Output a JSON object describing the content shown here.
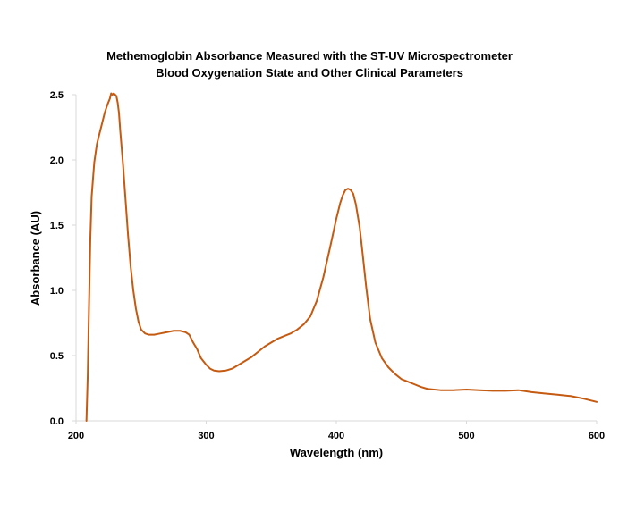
{
  "chart_data": {
    "type": "line",
    "title": "Methemoglobin Absorbance Measured with the ST-UV Microspectrometer",
    "subtitle": "Blood Oxygenation State and Other Clinical Parameters",
    "xlabel": "Wavelength (nm)",
    "ylabel": "Absorbance (AU)",
    "xlim": [
      200,
      600
    ],
    "ylim": [
      0,
      2.5
    ],
    "x_ticks": [
      "200",
      "300",
      "400",
      "500",
      "600"
    ],
    "y_ticks": [
      "0.0",
      "0.5",
      "1.0",
      "1.5",
      "2.0",
      "2.5"
    ],
    "grid": false,
    "legend": "none",
    "series": [
      {
        "color": "#C55A11",
        "x": [
          208,
          209,
          210,
          211,
          212,
          214,
          216,
          218,
          220,
          222,
          224,
          226,
          227,
          228,
          229,
          230,
          231,
          232,
          233,
          234,
          236,
          238,
          240,
          242,
          244,
          246,
          248,
          250,
          253,
          256,
          260,
          265,
          270,
          275,
          280,
          284,
          287,
          290,
          293,
          296,
          300,
          303,
          306,
          310,
          315,
          320,
          325,
          330,
          335,
          340,
          345,
          350,
          355,
          360,
          365,
          370,
          375,
          380,
          385,
          390,
          395,
          400,
          403,
          405,
          407,
          409,
          411,
          413,
          415,
          418,
          420,
          423,
          426,
          430,
          435,
          440,
          445,
          450,
          455,
          460,
          465,
          470,
          480,
          490,
          500,
          510,
          520,
          530,
          540,
          550,
          560,
          570,
          580,
          590,
          600
        ],
        "y": [
          0.0,
          0.35,
          0.9,
          1.4,
          1.72,
          1.98,
          2.12,
          2.2,
          2.28,
          2.36,
          2.42,
          2.47,
          2.51,
          2.5,
          2.51,
          2.5,
          2.49,
          2.44,
          2.36,
          2.22,
          1.98,
          1.7,
          1.42,
          1.18,
          1.0,
          0.86,
          0.76,
          0.7,
          0.67,
          0.66,
          0.66,
          0.67,
          0.68,
          0.69,
          0.69,
          0.68,
          0.66,
          0.6,
          0.55,
          0.48,
          0.43,
          0.4,
          0.385,
          0.38,
          0.385,
          0.4,
          0.43,
          0.46,
          0.49,
          0.53,
          0.57,
          0.6,
          0.63,
          0.65,
          0.67,
          0.7,
          0.74,
          0.8,
          0.92,
          1.1,
          1.32,
          1.55,
          1.67,
          1.73,
          1.77,
          1.78,
          1.77,
          1.74,
          1.66,
          1.48,
          1.3,
          1.02,
          0.78,
          0.6,
          0.48,
          0.41,
          0.36,
          0.32,
          0.3,
          0.28,
          0.26,
          0.245,
          0.235,
          0.235,
          0.24,
          0.235,
          0.23,
          0.23,
          0.235,
          0.22,
          0.21,
          0.2,
          0.19,
          0.17,
          0.145
        ]
      }
    ]
  }
}
